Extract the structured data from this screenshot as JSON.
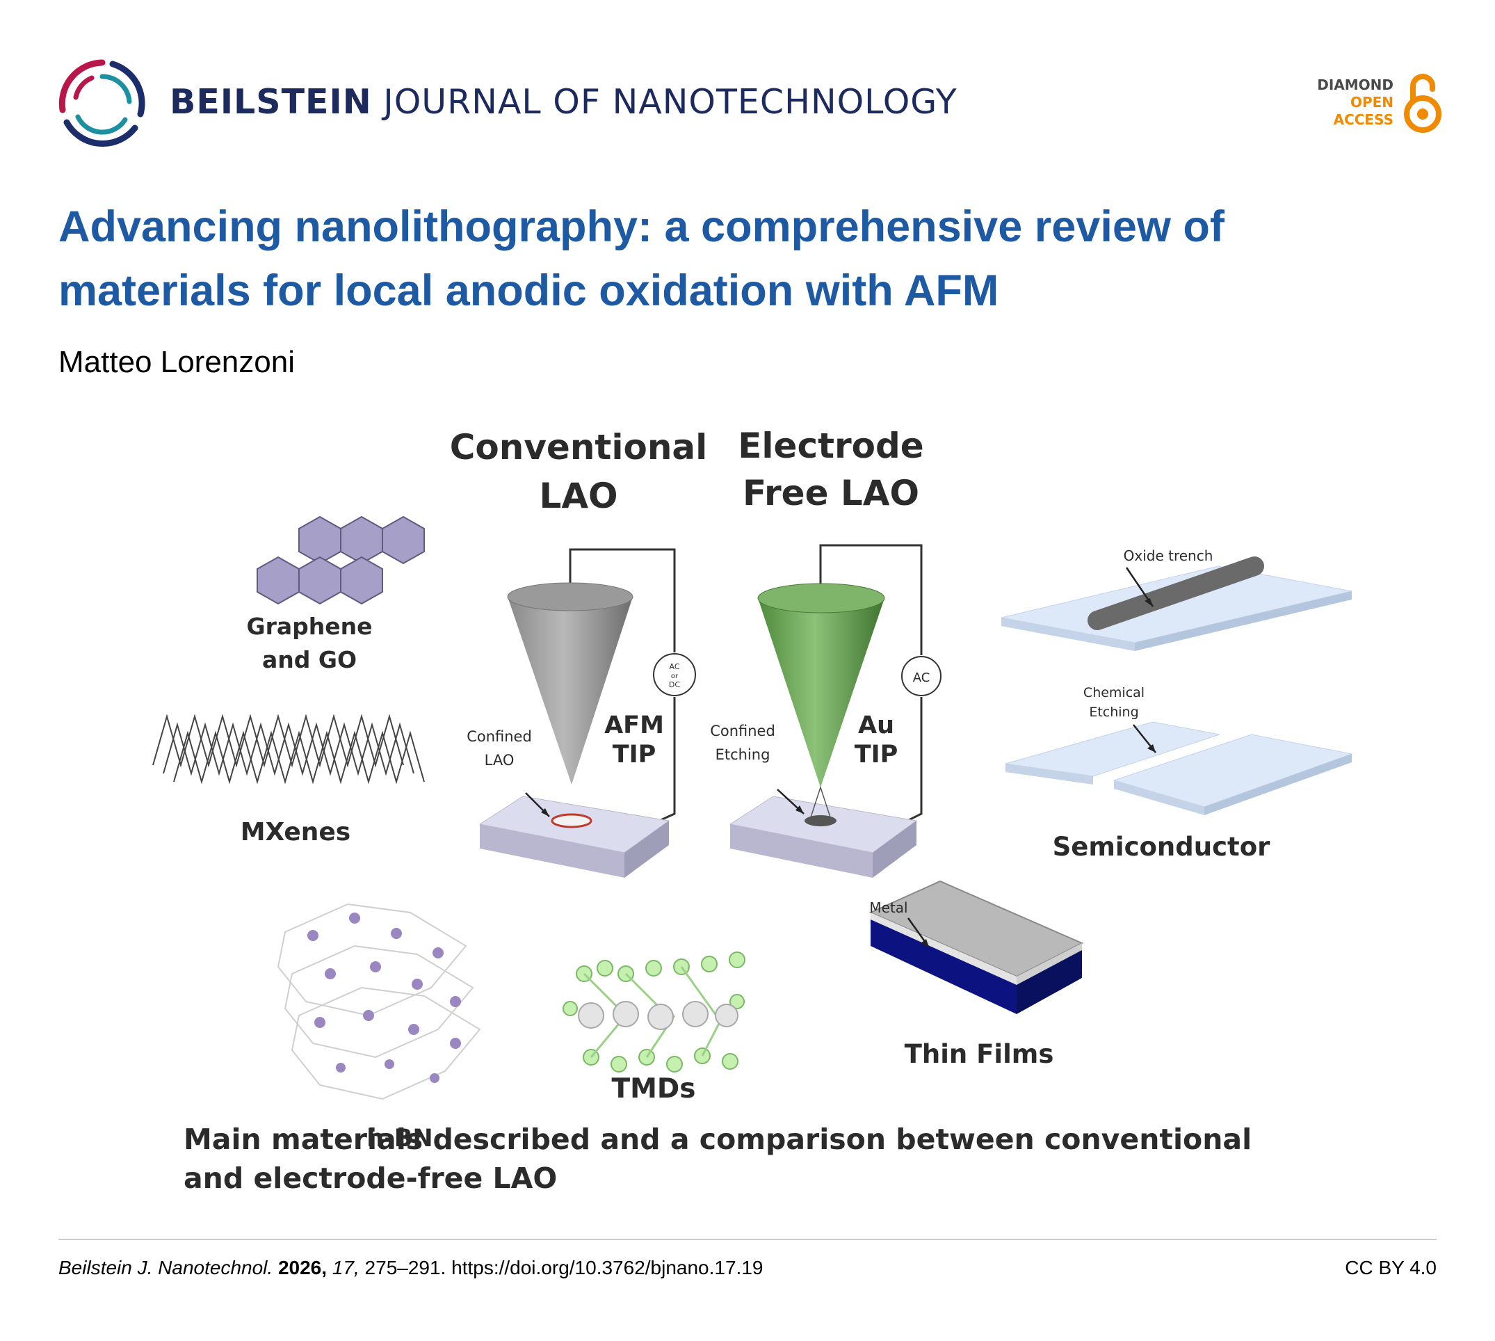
{
  "header": {
    "journal_strong": "BEILSTEIN",
    "journal_light": "JOURNAL OF NANOTECHNOLOGY",
    "badge": {
      "line1": "DIAMOND",
      "line2": "OPEN",
      "line3": "ACCESS"
    }
  },
  "article": {
    "title": "Advancing nanolithography: a comprehensive review of materials for local anodic oxidation with AFM",
    "author": "Matteo Lorenzoni"
  },
  "graphic": {
    "heading_conventional": [
      "Conventional",
      "LAO"
    ],
    "heading_electrode_free": [
      "Electrode",
      "Free LAO"
    ],
    "tip_afm": [
      "AFM",
      "TIP"
    ],
    "tip_au": [
      "Au",
      "TIP"
    ],
    "label_confined_lao": [
      "Confined",
      "LAO"
    ],
    "label_confined_etching": [
      "Confined",
      "Etching"
    ],
    "source_left": [
      "AC",
      "or",
      "DC"
    ],
    "source_right": "AC",
    "materials": {
      "graphene": [
        "Graphene",
        "and GO"
      ],
      "mxenes": "MXenes",
      "hbn": "h-BN",
      "tmds": "TMDs",
      "thin_films": "Thin Films",
      "semiconductor": "Semiconductor"
    },
    "oxide_trench": "Oxide trench",
    "chemical_etching": [
      "Chemical",
      "Etching"
    ],
    "metal": "Metal",
    "caption": [
      "Main materials described and a comparison between conventional",
      "and electrode-free LAO"
    ]
  },
  "footer": {
    "journal_abbr": "Beilstein J. Nanotechnol.",
    "year": "2026,",
    "volume": "17,",
    "pages": "275–291.",
    "doi": "https://doi.org/10.3762/bjnano.17.19",
    "license": "CC BY 4.0"
  },
  "colors": {
    "title_blue": "#1d5aa3",
    "journal_navy": "#1c2a5e",
    "oa_orange": "#f08a00",
    "tip_green": "#5e9a48",
    "film_navy": "#0c1380"
  }
}
